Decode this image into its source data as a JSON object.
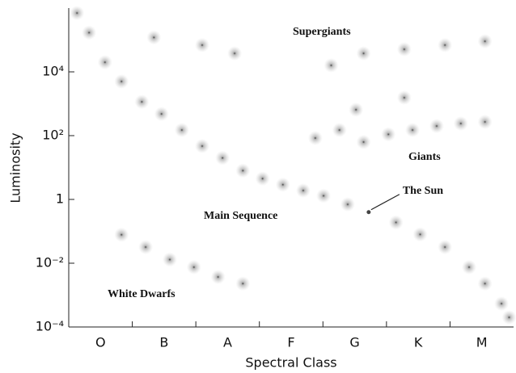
{
  "chart_data": {
    "type": "scatter",
    "x_label": "Spectral Class",
    "y_label": "Luminosity",
    "categories": [
      "O",
      "B",
      "A",
      "F",
      "G",
      "K",
      "M"
    ],
    "xlim": [
      0,
      7
    ],
    "ylim": [
      0.0001,
      1000000
    ],
    "log_y": true,
    "yticks": [
      {
        "value": 0.0001,
        "label": "10⁻⁴"
      },
      {
        "value": 0.01,
        "label": "10⁻²"
      },
      1,
      {
        "value": 100,
        "label": "10²"
      },
      {
        "value": 10000,
        "label": "10⁴"
      }
    ],
    "color": "#444",
    "x": [
      0.13,
      0.32,
      0.57,
      0.83,
      1.15,
      1.46,
      1.78,
      2.1,
      2.42,
      2.74,
      3.05,
      3.37,
      3.69,
      4.01,
      4.39,
      5.15,
      5.53,
      5.92,
      6.3,
      6.55,
      6.81,
      6.93,
      3.88,
      4.26,
      4.64,
      5.03,
      5.41,
      5.79,
      6.17,
      6.55,
      4.52,
      5.28,
      4.13,
      4.64,
      5.28,
      5.92,
      6.55,
      1.34,
      2.1,
      2.61,
      0.83,
      1.21,
      1.59,
      1.97,
      2.35,
      2.74
    ],
    "y": [
      700000,
      170000,
      20000,
      5000,
      1150,
      480,
      150,
      47,
      20,
      8,
      4.5,
      2.9,
      1.9,
      1.3,
      0.7,
      0.19,
      0.08,
      0.032,
      0.0075,
      0.0023,
      0.00054,
      0.0002,
      84,
      150,
      63,
      110,
      150,
      200,
      240,
      270,
      650,
      1550,
      16000,
      38000,
      51000,
      69000,
      91000,
      120000,
      69000,
      38000,
      0.078,
      0.032,
      0.013,
      0.0075,
      0.0037,
      0.0023
    ],
    "annotations": [
      "Supergiants",
      "Giants",
      "Main Sequence",
      "White Dwarfs"
    ],
    "highlight": {
      "label": "The Sun",
      "x": 4.72,
      "y": 0.4
    }
  }
}
